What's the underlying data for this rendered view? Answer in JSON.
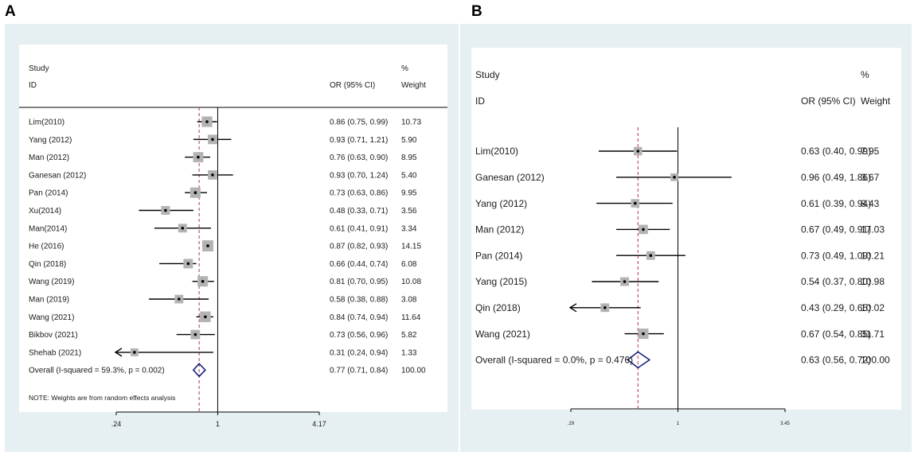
{
  "panel_labels": [
    "A",
    "B"
  ],
  "chart_data": [
    {
      "type": "forest",
      "panel": "A",
      "header": {
        "study_line1": "Study",
        "study_line2": "ID",
        "ci": "OR (95% CI)",
        "pct": "%",
        "weight": "Weight"
      },
      "scale": "log",
      "xlim": [
        0.24,
        4.17
      ],
      "ticks": [
        {
          "value": 0.24,
          "label": ".24"
        },
        {
          "value": 1,
          "label": "1"
        },
        {
          "value": 4.17,
          "label": "4.17"
        }
      ],
      "null_line": 1,
      "overall_line": 0.77,
      "studies": [
        {
          "id": "Lim(2010)",
          "or": 0.86,
          "lo": 0.75,
          "hi": 0.99,
          "ci_text": "0.86 (0.75, 0.99)",
          "weight": 10.73,
          "weight_text": "10.73"
        },
        {
          "id": "Yang (2012)",
          "or": 0.93,
          "lo": 0.71,
          "hi": 1.21,
          "ci_text": "0.93 (0.71, 1.21)",
          "weight": 5.9,
          "weight_text": "5.90"
        },
        {
          "id": "Man (2012)",
          "or": 0.76,
          "lo": 0.63,
          "hi": 0.9,
          "ci_text": "0.76 (0.63, 0.90)",
          "weight": 8.95,
          "weight_text": "8.95"
        },
        {
          "id": "Ganesan (2012)",
          "or": 0.93,
          "lo": 0.7,
          "hi": 1.24,
          "ci_text": "0.93 (0.70, 1.24)",
          "weight": 5.4,
          "weight_text": "5.40"
        },
        {
          "id": "Pan (2014)",
          "or": 0.73,
          "lo": 0.63,
          "hi": 0.86,
          "ci_text": "0.73 (0.63, 0.86)",
          "weight": 9.95,
          "weight_text": "9.95"
        },
        {
          "id": "Xu(2014)",
          "or": 0.48,
          "lo": 0.33,
          "hi": 0.71,
          "ci_text": "0.48 (0.33, 0.71)",
          "weight": 3.56,
          "weight_text": "3.56"
        },
        {
          "id": "Man(2014)",
          "or": 0.61,
          "lo": 0.41,
          "hi": 0.91,
          "ci_text": "0.61 (0.41, 0.91)",
          "weight": 3.34,
          "weight_text": "3.34"
        },
        {
          "id": "He (2016)",
          "or": 0.87,
          "lo": 0.82,
          "hi": 0.93,
          "ci_text": "0.87 (0.82, 0.93)",
          "weight": 14.15,
          "weight_text": "14.15"
        },
        {
          "id": "Qin (2018)",
          "or": 0.66,
          "lo": 0.44,
          "hi": 0.74,
          "ci_text": "0.66 (0.44, 0.74)",
          "weight": 6.08,
          "weight_text": "6.08"
        },
        {
          "id": "Wang (2019)",
          "or": 0.81,
          "lo": 0.7,
          "hi": 0.95,
          "ci_text": "0.81 (0.70, 0.95)",
          "weight": 10.08,
          "weight_text": "10.08"
        },
        {
          "id": "Man (2019)",
          "or": 0.58,
          "lo": 0.38,
          "hi": 0.88,
          "ci_text": "0.58 (0.38, 0.88)",
          "weight": 3.08,
          "weight_text": "3.08"
        },
        {
          "id": "Wang (2021)",
          "or": 0.84,
          "lo": 0.74,
          "hi": 0.94,
          "ci_text": "0.84 (0.74, 0.94)",
          "weight": 11.64,
          "weight_text": "11.64"
        },
        {
          "id": "Bikbov (2021)",
          "or": 0.73,
          "lo": 0.56,
          "hi": 0.96,
          "ci_text": "0.73 (0.56, 0.96)",
          "weight": 5.82,
          "weight_text": "5.82"
        },
        {
          "id": "Shehab (2021)",
          "or": 0.31,
          "lo": 0.24,
          "hi": 0.94,
          "ci_text": "0.31 (0.24, 0.94)",
          "weight": 1.33,
          "weight_text": "1.33",
          "arrow_left": true
        }
      ],
      "overall": {
        "label": "Overall  (I-squared = 59.3%, p = 0.002)",
        "or": 0.77,
        "lo": 0.71,
        "hi": 0.84,
        "ci_text": "0.77 (0.71, 0.84)",
        "weight_text": "100.00"
      },
      "note": "NOTE: Weights are from random effects analysis"
    },
    {
      "type": "forest",
      "panel": "B",
      "header": {
        "study_line1": "Study",
        "study_line2": "ID",
        "ci": "OR (95% CI)",
        "pct": "%",
        "weight": "Weight"
      },
      "scale": "log",
      "xlim": [
        0.29,
        3.45
      ],
      "ticks": [
        {
          "value": 0.29,
          "label": ".29"
        },
        {
          "value": 1,
          "label": "1"
        },
        {
          "value": 3.45,
          "label": "3.45"
        }
      ],
      "null_line": 1,
      "overall_line": 0.63,
      "studies": [
        {
          "id": "Lim(2010)",
          "or": 0.63,
          "lo": 0.4,
          "hi": 0.99,
          "ci_text": "0.63 (0.40, 0.99)",
          "weight": 7.95,
          "weight_text": "7.95"
        },
        {
          "id": "Ganesan  (2012)",
          "or": 0.96,
          "lo": 0.49,
          "hi": 1.86,
          "ci_text": "0.96 (0.49, 1.86)",
          "weight": 3.67,
          "weight_text": "3.67"
        },
        {
          "id": "Yang  (2012)",
          "or": 0.61,
          "lo": 0.39,
          "hi": 0.94,
          "ci_text": "0.61 (0.39, 0.94)",
          "weight": 8.43,
          "weight_text": "8.43"
        },
        {
          "id": "Man  (2012)",
          "or": 0.67,
          "lo": 0.49,
          "hi": 0.91,
          "ci_text": "0.67 (0.49, 0.91)",
          "weight": 17.03,
          "weight_text": "17.03"
        },
        {
          "id": "Pan  (2014)",
          "or": 0.73,
          "lo": 0.49,
          "hi": 1.09,
          "ci_text": "0.73 (0.49, 1.09)",
          "weight": 10.21,
          "weight_text": "10.21"
        },
        {
          "id": "Yang  (2015)",
          "or": 0.54,
          "lo": 0.37,
          "hi": 0.8,
          "ci_text": "0.54 (0.37, 0.80)",
          "weight": 10.98,
          "weight_text": "10.98"
        },
        {
          "id": "Qin  (2018)",
          "or": 0.43,
          "lo": 0.29,
          "hi": 0.65,
          "ci_text": "0.43 (0.29, 0.65)",
          "weight": 10.02,
          "weight_text": "10.02",
          "arrow_left": true
        },
        {
          "id": "Wang  (2021)",
          "or": 0.67,
          "lo": 0.54,
          "hi": 0.85,
          "ci_text": "0.67 (0.54, 0.85)",
          "weight": 31.71,
          "weight_text": "31.71"
        }
      ],
      "overall": {
        "label": "Overall  (I-squared = 0.0%, p = 0.476)",
        "or": 0.63,
        "lo": 0.56,
        "hi": 0.72,
        "ci_text": "0.63 (0.56, 0.72)",
        "weight_text": "100.00"
      }
    }
  ],
  "colors": {
    "outer_bg": "#e6eff2",
    "plot_bg": "#ffffff",
    "box": "#b3b3b3",
    "line": "#000000",
    "diamond": "#1a237e",
    "ref_dash": "#b03060",
    "text": "#1a1a1a"
  }
}
